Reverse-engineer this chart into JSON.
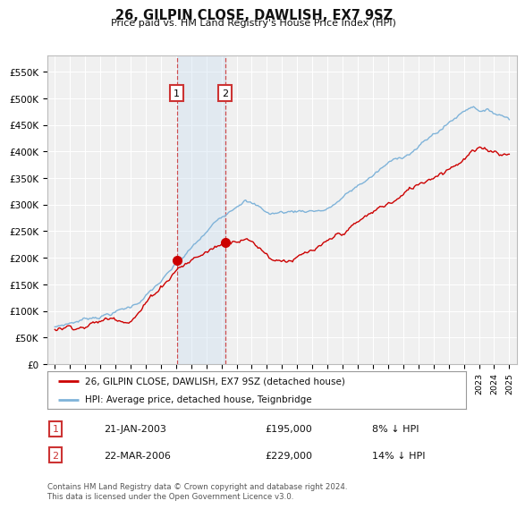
{
  "title": "26, GILPIN CLOSE, DAWLISH, EX7 9SZ",
  "subtitle": "Price paid vs. HM Land Registry's House Price Index (HPI)",
  "legend_line1": "26, GILPIN CLOSE, DAWLISH, EX7 9SZ (detached house)",
  "legend_line2": "HPI: Average price, detached house, Teignbridge",
  "transaction1_date": "21-JAN-2003",
  "transaction1_price": "£195,000",
  "transaction1_hpi": "8% ↓ HPI",
  "transaction2_date": "22-MAR-2006",
  "transaction2_price": "£229,000",
  "transaction2_hpi": "14% ↓ HPI",
  "line_color_red": "#cc0000",
  "line_color_blue": "#7fb3d9",
  "bg_color": "#ffffff",
  "plot_bg_color": "#f0f0f0",
  "grid_color": "#ffffff",
  "annotation_box_color": "#cc3333",
  "shaded_region_color": "#cce0f0",
  "yticks": [
    0,
    50000,
    100000,
    150000,
    200000,
    250000,
    300000,
    350000,
    400000,
    450000,
    500000,
    550000
  ],
  "ylim": [
    0,
    580000
  ],
  "copyright_text": "Contains HM Land Registry data © Crown copyright and database right 2024.\nThis data is licensed under the Open Government Licence v3.0.",
  "transaction1_x": 2003.06,
  "transaction1_y": 195000,
  "transaction2_x": 2006.23,
  "transaction2_y": 229000,
  "xmin": 1994.5,
  "xmax": 2025.5
}
